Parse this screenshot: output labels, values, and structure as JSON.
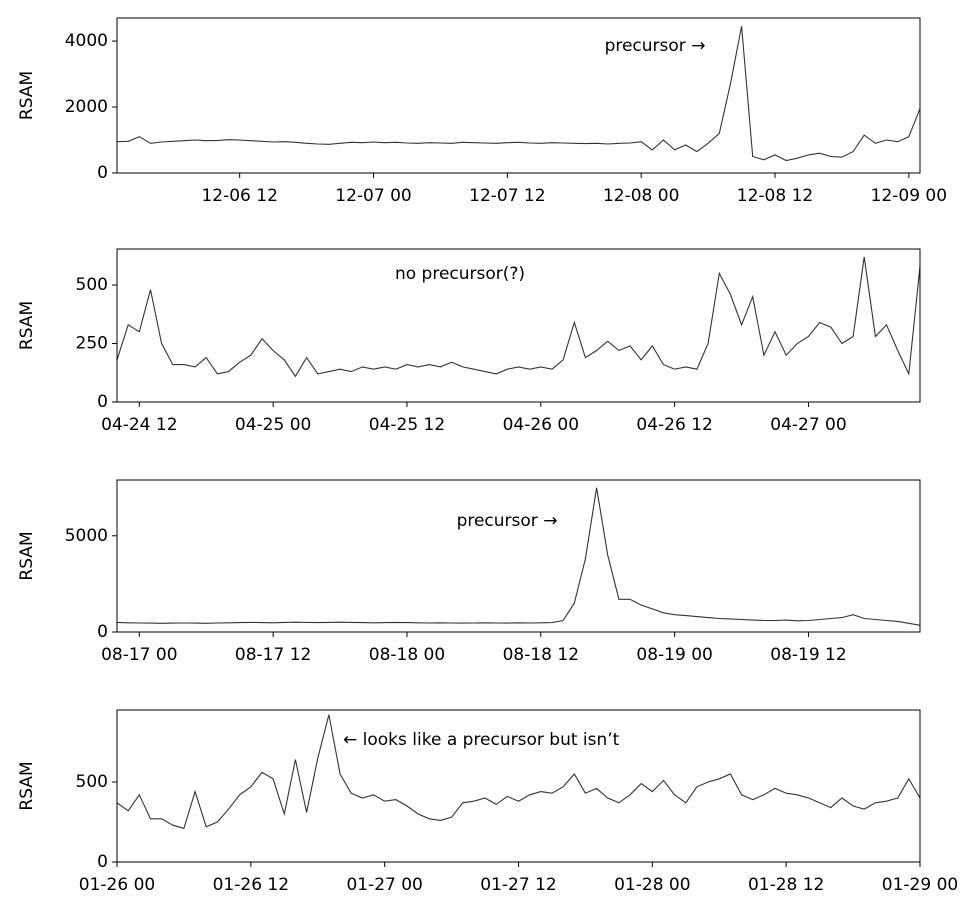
{
  "chart_data": [
    {
      "type": "line",
      "ylabel": "RSAM",
      "annotation": "precursor →",
      "color": "#333333",
      "xlim": [
        "12-06 01",
        "12-09 01"
      ],
      "ylim": [
        0,
        4700
      ],
      "yticks": [
        0,
        2000,
        4000
      ],
      "xticks": [
        "12-06 12",
        "12-07 00",
        "12-07 12",
        "12-08 00",
        "12-08 12",
        "12-09 00"
      ],
      "x": [
        "12-06 01",
        "12-06 02",
        "12-06 03",
        "12-06 04",
        "12-06 05",
        "12-06 06",
        "12-06 07",
        "12-06 08",
        "12-06 09",
        "12-06 10",
        "12-06 11",
        "12-06 12",
        "12-06 13",
        "12-06 14",
        "12-06 15",
        "12-06 16",
        "12-06 17",
        "12-06 18",
        "12-06 19",
        "12-06 20",
        "12-06 21",
        "12-06 22",
        "12-06 23",
        "12-07 00",
        "12-07 01",
        "12-07 02",
        "12-07 03",
        "12-07 04",
        "12-07 05",
        "12-07 06",
        "12-07 07",
        "12-07 08",
        "12-07 09",
        "12-07 10",
        "12-07 11",
        "12-07 12",
        "12-07 13",
        "12-07 14",
        "12-07 15",
        "12-07 16",
        "12-07 17",
        "12-07 18",
        "12-07 19",
        "12-07 20",
        "12-07 21",
        "12-07 22",
        "12-07 23",
        "12-08 00",
        "12-08 01",
        "12-08 02",
        "12-08 03",
        "12-08 04",
        "12-08 05",
        "12-08 06",
        "12-08 07",
        "12-08 08",
        "12-08 09",
        "12-08 10",
        "12-08 11",
        "12-08 12",
        "12-08 13",
        "12-08 14",
        "12-08 15",
        "12-08 16",
        "12-08 17",
        "12-08 18",
        "12-08 19",
        "12-08 20",
        "12-08 21",
        "12-08 22",
        "12-08 23",
        "12-09 00",
        "12-09 01"
      ],
      "values": [
        950,
        960,
        1100,
        900,
        940,
        960,
        980,
        1000,
        980,
        990,
        1010,
        1000,
        980,
        960,
        940,
        950,
        930,
        900,
        880,
        870,
        900,
        930,
        920,
        940,
        920,
        930,
        910,
        900,
        920,
        910,
        900,
        930,
        920,
        910,
        900,
        920,
        930,
        910,
        900,
        920,
        910,
        900,
        890,
        900,
        880,
        900,
        910,
        950,
        700,
        1000,
        700,
        850,
        650,
        900,
        1200,
        2700,
        4450,
        500,
        400,
        550,
        380,
        450,
        550,
        600,
        500,
        480,
        650,
        1150,
        900,
        1000,
        950,
        1100,
        1950
      ]
    },
    {
      "type": "line",
      "ylabel": "RSAM",
      "annotation": "no precursor(?)",
      "color": "#333333",
      "xlim": [
        "04-24 10",
        "04-27 10"
      ],
      "ylim": [
        0,
        654
      ],
      "yticks": [
        0,
        250,
        500
      ],
      "xticks": [
        "04-24 12",
        "04-25 00",
        "04-25 12",
        "04-26 00",
        "04-26 12",
        "04-27 00"
      ],
      "x": [
        "04-24 10",
        "04-24 11",
        "04-24 12",
        "04-24 13",
        "04-24 14",
        "04-24 15",
        "04-24 16",
        "04-24 17",
        "04-24 18",
        "04-24 19",
        "04-24 20",
        "04-24 21",
        "04-24 22",
        "04-24 23",
        "04-25 00",
        "04-25 01",
        "04-25 02",
        "04-25 03",
        "04-25 04",
        "04-25 05",
        "04-25 06",
        "04-25 07",
        "04-25 08",
        "04-25 09",
        "04-25 10",
        "04-25 11",
        "04-25 12",
        "04-25 13",
        "04-25 14",
        "04-25 15",
        "04-25 16",
        "04-25 17",
        "04-25 18",
        "04-25 19",
        "04-25 20",
        "04-25 21",
        "04-25 22",
        "04-25 23",
        "04-26 00",
        "04-26 01",
        "04-26 02",
        "04-26 03",
        "04-26 04",
        "04-26 05",
        "04-26 06",
        "04-26 07",
        "04-26 08",
        "04-26 09",
        "04-26 10",
        "04-26 11",
        "04-26 12",
        "04-26 13",
        "04-26 14",
        "04-26 15",
        "04-26 16",
        "04-26 17",
        "04-26 18",
        "04-26 19",
        "04-26 20",
        "04-26 21",
        "04-26 22",
        "04-26 23",
        "04-27 00",
        "04-27 01",
        "04-27 02",
        "04-27 03",
        "04-27 04",
        "04-27 05",
        "04-27 06",
        "04-27 07",
        "04-27 08",
        "04-27 09",
        "04-27 10"
      ],
      "values": [
        180,
        330,
        300,
        480,
        250,
        160,
        160,
        150,
        190,
        120,
        130,
        170,
        200,
        270,
        220,
        180,
        110,
        190,
        120,
        130,
        140,
        130,
        150,
        140,
        150,
        140,
        160,
        150,
        160,
        150,
        170,
        150,
        140,
        130,
        120,
        140,
        150,
        140,
        150,
        140,
        180,
        340,
        190,
        220,
        260,
        220,
        240,
        180,
        240,
        160,
        140,
        150,
        140,
        250,
        550,
        460,
        330,
        450,
        200,
        300,
        200,
        250,
        280,
        340,
        320,
        250,
        280,
        620,
        280,
        330,
        220,
        120,
        580
      ]
    },
    {
      "type": "line",
      "ylabel": "RSAM",
      "annotation": "precursor →",
      "color": "#333333",
      "xlim": [
        "08-16 22",
        "08-19 22"
      ],
      "ylim": [
        0,
        7900
      ],
      "yticks": [
        0,
        5000
      ],
      "xticks": [
        "08-17 00",
        "08-17 12",
        "08-18 00",
        "08-18 12",
        "08-19 00",
        "08-19 12"
      ],
      "x": [
        "08-16 22",
        "08-16 23",
        "08-17 00",
        "08-17 01",
        "08-17 02",
        "08-17 03",
        "08-17 04",
        "08-17 05",
        "08-17 06",
        "08-17 07",
        "08-17 08",
        "08-17 09",
        "08-17 10",
        "08-17 11",
        "08-17 12",
        "08-17 13",
        "08-17 14",
        "08-17 15",
        "08-17 16",
        "08-17 17",
        "08-17 18",
        "08-17 19",
        "08-17 20",
        "08-17 21",
        "08-17 22",
        "08-17 23",
        "08-18 00",
        "08-18 01",
        "08-18 02",
        "08-18 03",
        "08-18 04",
        "08-18 05",
        "08-18 06",
        "08-18 07",
        "08-18 08",
        "08-18 09",
        "08-18 10",
        "08-18 11",
        "08-18 12",
        "08-18 13",
        "08-18 14",
        "08-18 15",
        "08-18 16",
        "08-18 17",
        "08-18 18",
        "08-18 19",
        "08-18 20",
        "08-18 21",
        "08-18 22",
        "08-18 23",
        "08-19 00",
        "08-19 01",
        "08-19 02",
        "08-19 03",
        "08-19 04",
        "08-19 05",
        "08-19 06",
        "08-19 07",
        "08-19 08",
        "08-19 09",
        "08-19 10",
        "08-19 11",
        "08-19 12",
        "08-19 13",
        "08-19 14",
        "08-19 15",
        "08-19 16",
        "08-19 17",
        "08-19 18",
        "08-19 19",
        "08-19 20",
        "08-19 21",
        "08-19 22"
      ],
      "values": [
        500,
        480,
        470,
        460,
        450,
        460,
        470,
        460,
        450,
        470,
        480,
        490,
        500,
        490,
        480,
        500,
        510,
        500,
        490,
        500,
        510,
        500,
        490,
        480,
        490,
        500,
        490,
        480,
        470,
        480,
        470,
        460,
        470,
        480,
        470,
        460,
        480,
        470,
        480,
        490,
        600,
        1500,
        3800,
        7500,
        4000,
        1700,
        1700,
        1400,
        1200,
        1000,
        900,
        850,
        800,
        750,
        700,
        680,
        650,
        620,
        600,
        600,
        620,
        580,
        600,
        650,
        700,
        750,
        900,
        700,
        650,
        600,
        550,
        450,
        350
      ]
    },
    {
      "type": "line",
      "ylabel": "RSAM",
      "annotation": "← looks like a precursor but isn’t",
      "color": "#333333",
      "xlim": [
        "01-26 00",
        "01-29 00"
      ],
      "ylim": [
        0,
        950
      ],
      "yticks": [
        0,
        500
      ],
      "xticks": [
        "01-26 00",
        "01-26 12",
        "01-27 00",
        "01-27 12",
        "01-28 00",
        "01-28 12",
        "01-29 00"
      ],
      "x": [
        "01-26 00",
        "01-26 01",
        "01-26 02",
        "01-26 03",
        "01-26 04",
        "01-26 05",
        "01-26 06",
        "01-26 07",
        "01-26 08",
        "01-26 09",
        "01-26 10",
        "01-26 11",
        "01-26 12",
        "01-26 13",
        "01-26 14",
        "01-26 15",
        "01-26 16",
        "01-26 17",
        "01-26 18",
        "01-26 19",
        "01-26 20",
        "01-26 21",
        "01-26 22",
        "01-26 23",
        "01-27 00",
        "01-27 01",
        "01-27 02",
        "01-27 03",
        "01-27 04",
        "01-27 05",
        "01-27 06",
        "01-27 07",
        "01-27 08",
        "01-27 09",
        "01-27 10",
        "01-27 11",
        "01-27 12",
        "01-27 13",
        "01-27 14",
        "01-27 15",
        "01-27 16",
        "01-27 17",
        "01-27 18",
        "01-27 19",
        "01-27 20",
        "01-27 21",
        "01-27 22",
        "01-27 23",
        "01-28 00",
        "01-28 01",
        "01-28 02",
        "01-28 03",
        "01-28 04",
        "01-28 05",
        "01-28 06",
        "01-28 07",
        "01-28 08",
        "01-28 09",
        "01-28 10",
        "01-28 11",
        "01-28 12",
        "01-28 13",
        "01-28 14",
        "01-28 15",
        "01-28 16",
        "01-28 17",
        "01-28 18",
        "01-28 19",
        "01-28 20",
        "01-28 21",
        "01-28 22",
        "01-28 23",
        "01-29 00"
      ],
      "values": [
        370,
        320,
        420,
        270,
        270,
        230,
        210,
        440,
        220,
        250,
        330,
        420,
        470,
        560,
        520,
        300,
        640,
        310,
        650,
        920,
        550,
        430,
        400,
        420,
        380,
        390,
        350,
        300,
        270,
        260,
        280,
        370,
        380,
        400,
        360,
        410,
        380,
        420,
        440,
        430,
        470,
        550,
        430,
        460,
        400,
        370,
        420,
        490,
        440,
        510,
        420,
        370,
        470,
        500,
        520,
        550,
        420,
        390,
        420,
        460,
        430,
        420,
        400,
        370,
        340,
        400,
        350,
        330,
        370,
        380,
        400,
        520,
        400
      ]
    }
  ]
}
